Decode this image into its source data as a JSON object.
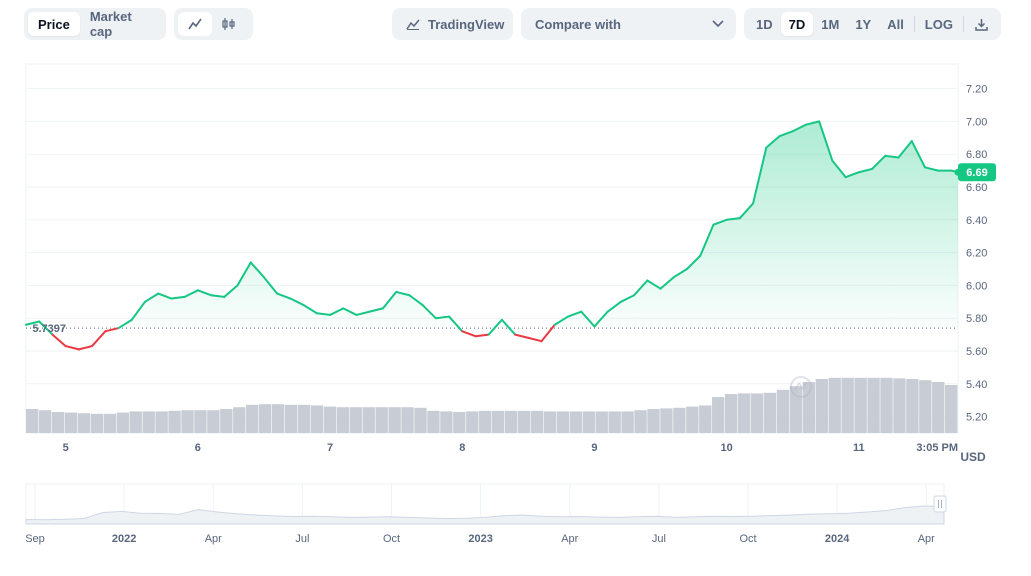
{
  "toolbar": {
    "metric_tabs": [
      {
        "label": "Price",
        "active": true
      },
      {
        "label": "Market cap",
        "active": false
      }
    ],
    "chart_style": {
      "active": "line-chart-icon",
      "icons": [
        "line-chart-icon",
        "candlestick-icon"
      ]
    },
    "tradingview_label": "TradingView",
    "compare_label": "Compare with",
    "ranges": [
      {
        "label": "1D",
        "active": false
      },
      {
        "label": "7D",
        "active": true
      },
      {
        "label": "1M",
        "active": false
      },
      {
        "label": "1Y",
        "active": false
      },
      {
        "label": "All",
        "active": false
      }
    ],
    "log_label": "LOG"
  },
  "colors": {
    "up": "#16c784",
    "down": "#ea3943",
    "volume": "#c8ccd4",
    "label_bg": "#16c784"
  },
  "chart_data": {
    "type": "line",
    "currency": "USD",
    "ylim": [
      5.1,
      7.35
    ],
    "y_ticks": [
      5.2,
      5.4,
      5.6,
      5.8,
      6.0,
      6.2,
      6.4,
      6.6,
      6.8,
      7.0,
      7.2
    ],
    "x_ticks": [
      "5",
      "6",
      "7",
      "8",
      "9",
      "10",
      "11",
      "3:05 PM"
    ],
    "xlim": [
      4.7,
      11.75
    ],
    "baseline": 5.7397,
    "baseline_label": "5.7397",
    "current_value": 6.69,
    "current_label": "6.69",
    "series": [
      {
        "x": [
          4.7,
          4.8,
          4.9,
          5.0,
          5.1,
          5.2,
          5.3,
          5.4,
          5.5,
          5.6,
          5.7,
          5.8,
          5.9,
          6.0,
          6.1,
          6.2,
          6.3,
          6.4,
          6.5,
          6.6,
          6.7,
          6.8,
          6.9,
          7.0,
          7.1,
          7.2,
          7.3,
          7.4,
          7.5,
          7.6,
          7.7,
          7.8,
          7.9,
          8.0,
          8.1,
          8.2,
          8.3,
          8.4,
          8.5,
          8.6,
          8.7,
          8.8,
          8.9,
          9.0,
          9.1,
          9.2,
          9.3,
          9.4,
          9.5,
          9.6,
          9.7,
          9.8,
          9.9,
          10.0,
          10.1,
          10.2,
          10.3,
          10.4,
          10.5,
          10.6,
          10.7,
          10.8,
          10.9,
          11.0,
          11.1,
          11.2,
          11.3,
          11.4,
          11.5,
          11.6,
          11.7,
          11.75
        ],
        "y": [
          5.76,
          5.78,
          5.7,
          5.63,
          5.61,
          5.63,
          5.72,
          5.74,
          5.79,
          5.9,
          5.95,
          5.92,
          5.93,
          5.97,
          5.94,
          5.93,
          6.0,
          6.14,
          6.05,
          5.95,
          5.92,
          5.88,
          5.83,
          5.82,
          5.86,
          5.82,
          5.84,
          5.86,
          5.96,
          5.94,
          5.88,
          5.8,
          5.81,
          5.72,
          5.69,
          5.7,
          5.79,
          5.7,
          5.68,
          5.66,
          5.76,
          5.81,
          5.84,
          5.75,
          5.84,
          5.9,
          5.94,
          6.03,
          5.98,
          6.05,
          6.1,
          6.18,
          6.37,
          6.4,
          6.41,
          6.5,
          6.84,
          6.91,
          6.94,
          6.98,
          7.0,
          6.76,
          6.66,
          6.69,
          6.71,
          6.79,
          6.78,
          6.88,
          6.72,
          6.7,
          6.7,
          6.69
        ]
      }
    ],
    "volume": [
      0.4,
      0.38,
      0.35,
      0.34,
      0.33,
      0.32,
      0.32,
      0.34,
      0.36,
      0.36,
      0.36,
      0.37,
      0.38,
      0.38,
      0.38,
      0.4,
      0.43,
      0.47,
      0.48,
      0.48,
      0.47,
      0.47,
      0.46,
      0.44,
      0.43,
      0.43,
      0.43,
      0.43,
      0.43,
      0.43,
      0.42,
      0.37,
      0.36,
      0.35,
      0.36,
      0.37,
      0.37,
      0.37,
      0.37,
      0.37,
      0.36,
      0.36,
      0.36,
      0.36,
      0.36,
      0.36,
      0.36,
      0.38,
      0.4,
      0.41,
      0.42,
      0.44,
      0.46,
      0.6,
      0.65,
      0.66,
      0.66,
      0.67,
      0.72,
      0.78,
      0.85,
      0.9,
      0.92,
      0.92,
      0.92,
      0.92,
      0.92,
      0.91,
      0.9,
      0.88,
      0.85,
      0.8
    ]
  },
  "navigator": {
    "x_labels": [
      "Sep",
      "2022",
      "Apr",
      "Jul",
      "Oct",
      "2023",
      "Apr",
      "Jul",
      "Oct",
      "2024",
      "Apr"
    ],
    "values": [
      0.15,
      0.14,
      0.16,
      0.18,
      0.38,
      0.42,
      0.36,
      0.35,
      0.32,
      0.48,
      0.4,
      0.34,
      0.3,
      0.27,
      0.25,
      0.26,
      0.24,
      0.22,
      0.23,
      0.24,
      0.22,
      0.2,
      0.18,
      0.19,
      0.22,
      0.28,
      0.3,
      0.26,
      0.24,
      0.25,
      0.23,
      0.22,
      0.24,
      0.26,
      0.22,
      0.24,
      0.26,
      0.25,
      0.26,
      0.28,
      0.3,
      0.33,
      0.34,
      0.36,
      0.4,
      0.45,
      0.55,
      0.6,
      0.58
    ]
  }
}
